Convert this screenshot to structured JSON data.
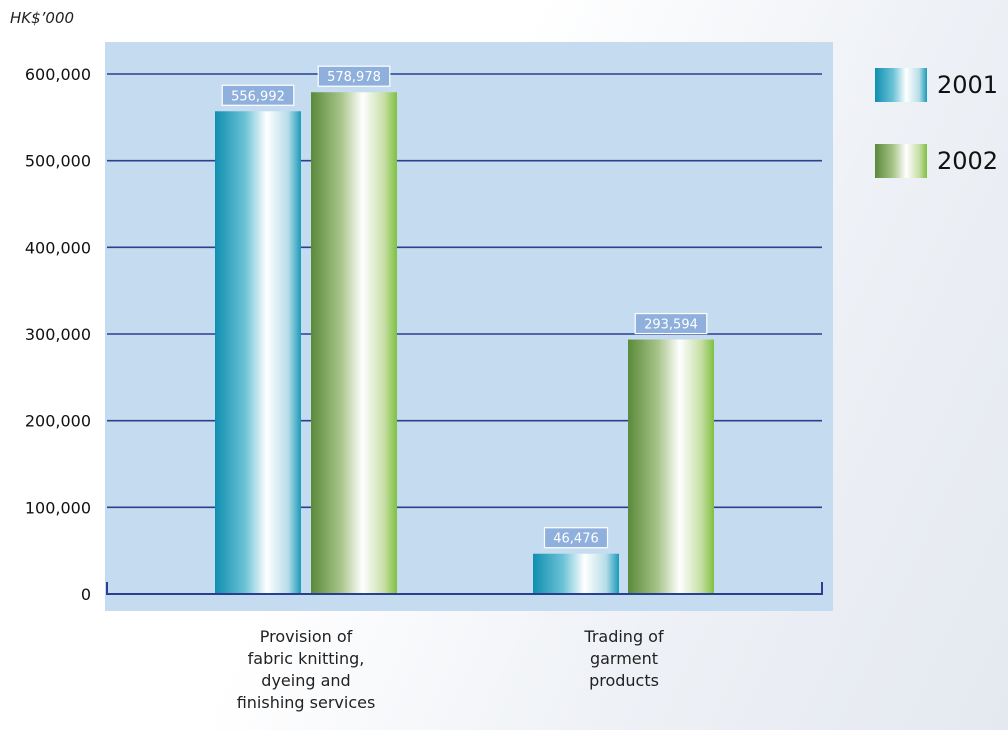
{
  "colors": {
    "plot_bg": "#c5dcf0",
    "gridline": "#2b3f8f",
    "series_2001": "#1a9ab8",
    "series_2002": "#6e9e3a",
    "label_box_bg": "#8fb0dc"
  },
  "chart_data": {
    "type": "bar",
    "unit_label": "HK$’000",
    "categories": [
      "Provision of\nfabric knitting,\ndyeing and\nfinishing services",
      "Trading of\ngarment\nproducts"
    ],
    "series": [
      {
        "name": "2001",
        "values": [
          556992,
          46476
        ],
        "value_labels": [
          "556,992",
          "46,476"
        ]
      },
      {
        "name": "2002",
        "values": [
          578978,
          293594
        ],
        "value_labels": [
          "578,978",
          "293,594"
        ]
      }
    ],
    "ylim": [
      0,
      600000
    ],
    "yticks": [
      0,
      100000,
      200000,
      300000,
      400000,
      500000,
      600000
    ],
    "ytick_labels": [
      "0",
      "100,000",
      "200,000",
      "300,000",
      "400,000",
      "500,000",
      "600,000"
    ],
    "grid": true,
    "legend_position": "right"
  }
}
